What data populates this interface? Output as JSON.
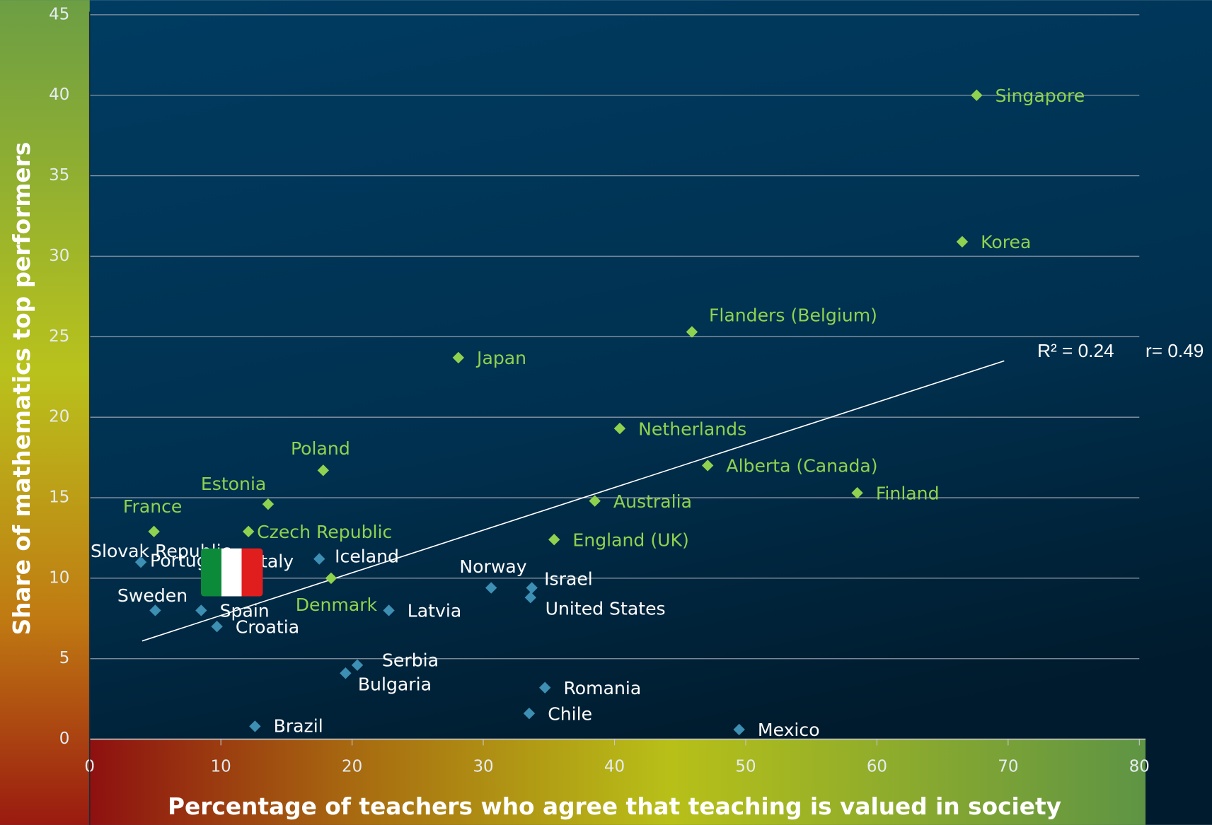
{
  "chart_data": {
    "type": "scatter",
    "xlabel": "Percentage of teachers who agree that teaching is valued in society",
    "ylabel": "Share of mathematics top performers",
    "xlim": [
      0,
      80
    ],
    "xticks": [
      0,
      10,
      20,
      30,
      40,
      50,
      60,
      70,
      80
    ],
    "ylim": [
      0,
      45
    ],
    "yticks": [
      0,
      5,
      10,
      15,
      20,
      25,
      30,
      35,
      40,
      45
    ],
    "grid": true,
    "series": [
      {
        "color": "#8fd24f",
        "labels": [
          "Singapore",
          "Korea",
          "Flanders (Belgium)",
          "Japan",
          "Netherlands",
          "Alberta (Canada)",
          "Finland",
          "Australia",
          "England (UK)",
          "Poland",
          "Estonia",
          "France",
          "Czech Republic",
          "Denmark"
        ],
        "x": [
          67.6,
          66.5,
          45.9,
          28.1,
          40.4,
          47.1,
          58.5,
          38.5,
          35.4,
          17.8,
          13.6,
          4.9,
          12.1,
          18.4
        ],
        "values": [
          40.0,
          30.9,
          25.3,
          23.7,
          19.3,
          17.0,
          15.3,
          14.8,
          12.4,
          16.7,
          14.6,
          12.9,
          12.9,
          10.0
        ]
      },
      {
        "color": "#3d8fb3",
        "labels": [
          "Slovak Republic",
          "Portugal",
          "Italy",
          "Iceland",
          "Sweden",
          "Spain",
          "Croatia",
          "Latvia",
          "Norway",
          "Israel",
          "United States",
          "Serbia",
          "Bulgaria",
          "Romania",
          "Chile",
          "Brazil",
          "Mexico"
        ],
        "x": [
          3.9,
          8.9,
          11.2,
          17.5,
          5.0,
          8.5,
          9.7,
          22.8,
          30.6,
          33.7,
          33.6,
          20.4,
          19.5,
          34.7,
          33.5,
          12.6,
          49.5
        ],
        "values": [
          11.0,
          10.3,
          10.5,
          11.2,
          8.0,
          8.0,
          7.0,
          8.0,
          9.4,
          9.4,
          8.8,
          4.6,
          4.1,
          3.2,
          1.6,
          0.8,
          0.6
        ]
      }
    ],
    "trendline": {
      "x": [
        4.0,
        69.7
      ],
      "y": [
        6.1,
        23.5
      ]
    },
    "annotations": [
      "R² = 0.24",
      "r= 0.49"
    ]
  }
}
